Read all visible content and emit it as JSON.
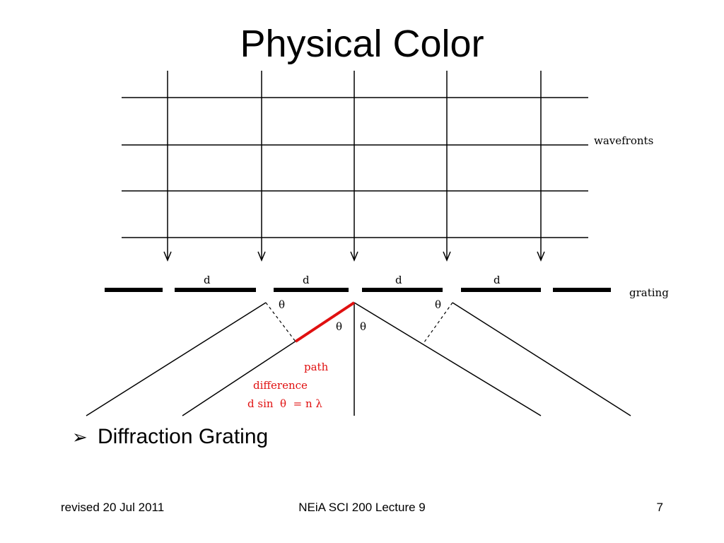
{
  "slide": {
    "title": "Physical Color",
    "bullet_marker": "➢",
    "bullet_text": "Diffraction Grating"
  },
  "diagram": {
    "wavefronts_label": "wavefronts",
    "grating_label": "grating",
    "spacing_label": "d",
    "angle_label": "θ",
    "path_label_1": "path",
    "path_label_2": "difference",
    "formula": "d sin  θ  = n λ",
    "highlight_color": "#e01010"
  },
  "footer": {
    "left": "revised 20 Jul 2011",
    "center": "NEiA SCI 200 Lecture 9",
    "right": "7"
  }
}
